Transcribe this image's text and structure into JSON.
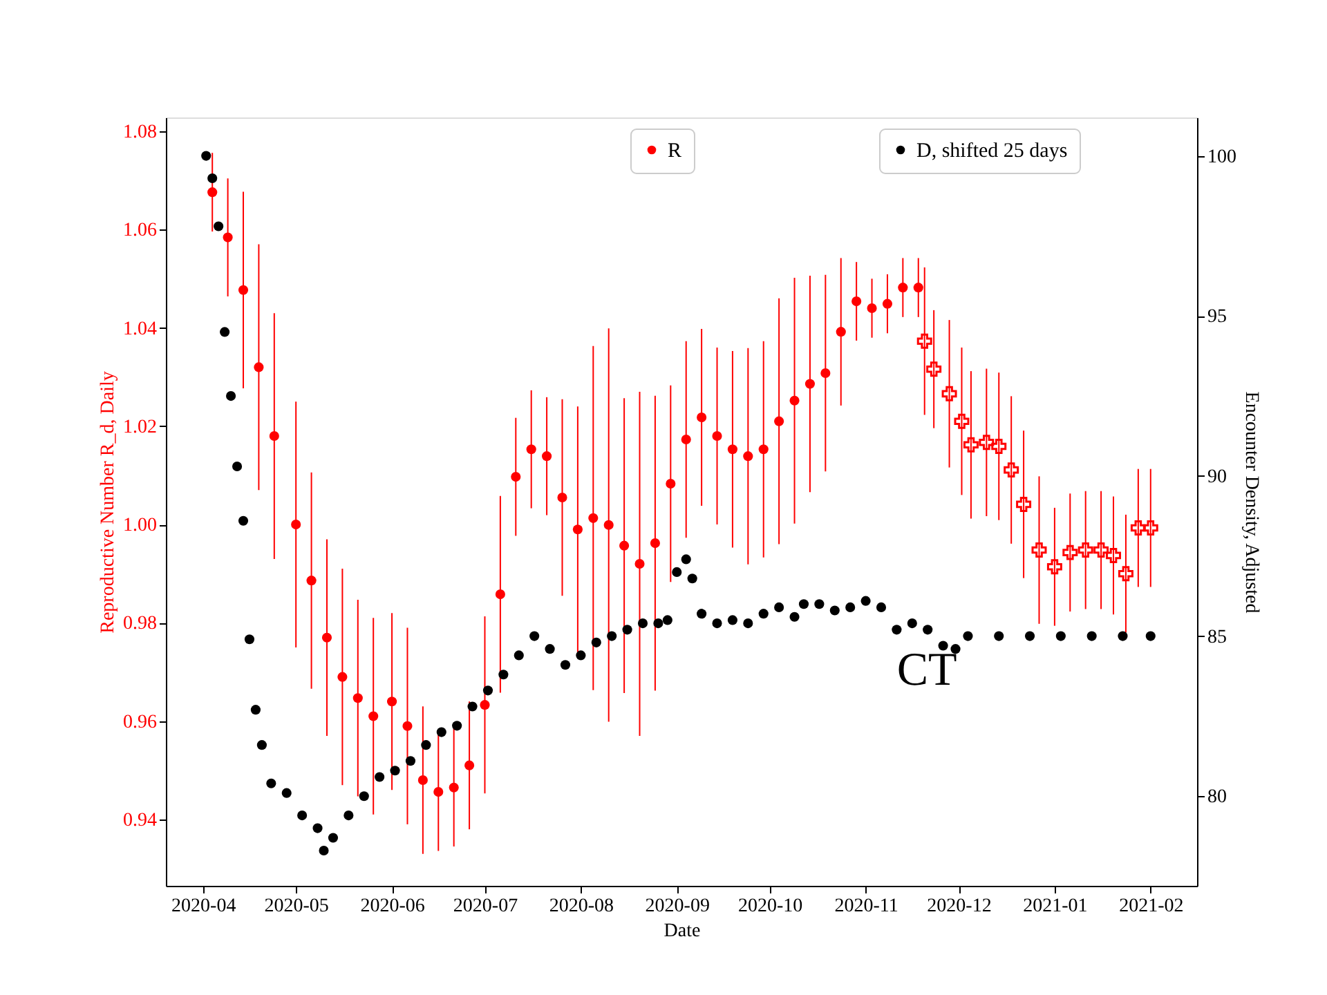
{
  "chart_data": {
    "type": "scatter",
    "xlabel": "Date",
    "ylabel": "Reproductive Number R_d, Daily",
    "y2label": "Encounter Density, Adjusted",
    "xlim": [
      "2020-03-20",
      "2021-02-16"
    ],
    "xticks": [
      {
        "value": "2020-04-01",
        "label": "2020-04"
      },
      {
        "value": "2020-05-01",
        "label": "2020-05"
      },
      {
        "value": "2020-06-01",
        "label": "2020-06"
      },
      {
        "value": "2020-07-01",
        "label": "2020-07"
      },
      {
        "value": "2020-08-01",
        "label": "2020-08"
      },
      {
        "value": "2020-09-01",
        "label": "2020-09"
      },
      {
        "value": "2020-10-01",
        "label": "2020-10"
      },
      {
        "value": "2020-11-01",
        "label": "2020-11"
      },
      {
        "value": "2020-12-01",
        "label": "2020-12"
      },
      {
        "value": "2021-01-01",
        "label": "2021-01"
      },
      {
        "value": "2021-02-01",
        "label": "2021-02"
      }
    ],
    "ylim": [
      0.9265,
      1.0828
    ],
    "yticks": [
      {
        "value": 0.94,
        "label": "0.94"
      },
      {
        "value": 0.96,
        "label": "0.96"
      },
      {
        "value": 0.98,
        "label": "0.98"
      },
      {
        "value": 1.0,
        "label": "1.00"
      },
      {
        "value": 1.02,
        "label": "1.02"
      },
      {
        "value": 1.04,
        "label": "1.04"
      },
      {
        "value": 1.06,
        "label": "1.06"
      },
      {
        "value": 1.08,
        "label": "1.08"
      }
    ],
    "y2lim": [
      77.2,
      101.2
    ],
    "y2ticks": [
      80,
      85,
      90,
      95,
      100
    ],
    "grid": false,
    "legend": "top right",
    "marker": "circle",
    "annotations": [
      "CT"
    ],
    "series": [
      {
        "name": "R",
        "color": "#ff0000",
        "x": [
          "2020-04-04",
          "2020-04-09",
          "2020-04-14",
          "2020-04-19",
          "2020-04-24",
          "2020-05-01",
          "2020-05-06",
          "2020-05-11",
          "2020-05-16",
          "2020-05-21",
          "2020-05-26",
          "2020-06-01",
          "2020-06-06",
          "2020-06-11",
          "2020-06-16",
          "2020-06-21",
          "2020-06-26",
          "2020-07-01",
          "2020-07-06",
          "2020-07-11",
          "2020-07-16",
          "2020-07-21",
          "2020-07-26",
          "2020-07-31",
          "2020-08-05",
          "2020-08-10",
          "2020-08-15",
          "2020-08-20",
          "2020-08-25",
          "2020-08-30",
          "2020-09-04",
          "2020-09-09",
          "2020-09-14",
          "2020-09-19",
          "2020-09-24",
          "2020-09-29",
          "2020-10-04",
          "2020-10-09",
          "2020-10-14",
          "2020-10-19",
          "2020-10-24",
          "2020-10-29",
          "2020-11-03",
          "2020-11-08",
          "2020-11-13",
          "2020-11-18"
        ],
        "values": [
          1.0676,
          1.0584,
          1.0477,
          1.032,
          1.018,
          1.0,
          0.9886,
          0.977,
          0.969,
          0.9647,
          0.961,
          0.964,
          0.959,
          0.948,
          0.9456,
          0.9465,
          0.951,
          0.9633,
          0.9858,
          1.0097,
          1.0153,
          1.0139,
          1.0055,
          0.999,
          1.0013,
          0.9999,
          0.9957,
          0.992,
          0.9962,
          1.0083,
          1.0173,
          1.0218,
          1.018,
          1.0153,
          1.0139,
          1.0153,
          1.021,
          1.0252,
          1.0286,
          1.0308,
          1.0392,
          1.0454,
          1.044,
          1.0449,
          1.0482,
          1.0482
        ],
        "errors": [
          0.008,
          0.012,
          0.02,
          0.025,
          0.025,
          0.025,
          0.022,
          0.02,
          0.022,
          0.02,
          0.02,
          0.018,
          0.02,
          0.015,
          0.012,
          0.012,
          0.013,
          0.018,
          0.02,
          0.012,
          0.012,
          0.012,
          0.02,
          0.025,
          0.035,
          0.04,
          0.03,
          0.035,
          0.03,
          0.02,
          0.02,
          0.018,
          0.018,
          0.02,
          0.022,
          0.022,
          0.025,
          0.025,
          0.022,
          0.02,
          0.015,
          0.008,
          0.006,
          0.006,
          0.006,
          0.006
        ]
      },
      {
        "color": "#ff0000",
        "marker": "cross",
        "x": [
          "2020-11-20",
          "2020-11-23",
          "2020-11-28",
          "2020-12-02",
          "2020-12-05",
          "2020-12-10",
          "2020-12-14",
          "2020-12-18",
          "2020-12-22",
          "2020-12-27",
          "2021-01-01",
          "2021-01-06",
          "2021-01-11",
          "2021-01-16",
          "2021-01-20",
          "2021-01-24",
          "2021-01-28",
          "2021-02-01"
        ],
        "values": [
          1.0373,
          1.0316,
          1.0266,
          1.021,
          1.0162,
          1.0167,
          1.0159,
          1.0111,
          1.0041,
          0.9948,
          0.9914,
          0.9943,
          0.9948,
          0.9948,
          0.9937,
          0.99,
          0.9993,
          0.9993
        ],
        "errors": [
          0.015,
          0.012,
          0.015,
          0.015,
          0.015,
          0.015,
          0.015,
          0.015,
          0.015,
          0.015,
          0.012,
          0.012,
          0.012,
          0.012,
          0.012,
          0.012,
          0.012,
          0.012
        ]
      },
      {
        "name": "D, shifted 25 days",
        "color": "#000000",
        "axis": "y2",
        "x": [
          "2020-04-02",
          "2020-04-04",
          "2020-04-06",
          "2020-04-08",
          "2020-04-10",
          "2020-04-12",
          "2020-04-14",
          "2020-04-16",
          "2020-04-18",
          "2020-04-20",
          "2020-04-23",
          "2020-04-28",
          "2020-05-03",
          "2020-05-08",
          "2020-05-10",
          "2020-05-13",
          "2020-05-18",
          "2020-05-23",
          "2020-05-28",
          "2020-06-02",
          "2020-06-07",
          "2020-06-12",
          "2020-06-17",
          "2020-06-22",
          "2020-06-27",
          "2020-07-02",
          "2020-07-07",
          "2020-07-12",
          "2020-07-17",
          "2020-07-22",
          "2020-07-27",
          "2020-08-01",
          "2020-08-06",
          "2020-08-11",
          "2020-08-16",
          "2020-08-21",
          "2020-08-26",
          "2020-08-29",
          "2020-09-01",
          "2020-09-04",
          "2020-09-06",
          "2020-09-09",
          "2020-09-14",
          "2020-09-19",
          "2020-09-24",
          "2020-09-29",
          "2020-10-04",
          "2020-10-09",
          "2020-10-12",
          "2020-10-17",
          "2020-10-22",
          "2020-10-27",
          "2020-11-01",
          "2020-11-06",
          "2020-11-11",
          "2020-11-16",
          "2020-11-21",
          "2020-11-26",
          "2020-11-30",
          "2020-12-04",
          "2020-12-14",
          "2020-12-24",
          "2021-01-03",
          "2021-01-13",
          "2021-01-23",
          "2021-02-01"
        ],
        "values": [
          100.0,
          99.3,
          97.8,
          94.5,
          92.5,
          90.3,
          88.6,
          84.9,
          82.7,
          81.6,
          80.4,
          80.1,
          79.4,
          79.0,
          78.3,
          78.7,
          79.4,
          80.0,
          80.6,
          80.8,
          81.1,
          81.6,
          82.0,
          82.2,
          82.8,
          83.3,
          83.8,
          84.4,
          85.0,
          84.6,
          84.1,
          84.4,
          84.8,
          85.0,
          85.2,
          85.4,
          85.4,
          85.5,
          87.0,
          87.4,
          86.8,
          85.7,
          85.4,
          85.5,
          85.4,
          85.7,
          85.9,
          85.6,
          86.0,
          86.0,
          85.8,
          85.9,
          86.1,
          85.9,
          85.2,
          85.4,
          85.2,
          84.7,
          84.6,
          85.0,
          85.0,
          85.0,
          85.0,
          85.0,
          85.0,
          85.0
        ]
      }
    ]
  }
}
